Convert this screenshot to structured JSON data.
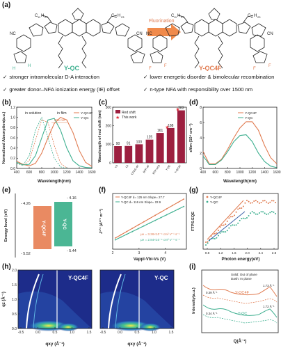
{
  "figure": {
    "panel_labels": [
      "(a)",
      "(b)",
      "(c)",
      "(d)",
      "(e)",
      "(f)",
      "(g)",
      "(h)",
      "(i)"
    ],
    "a": {
      "molecule_left": "Y-QC",
      "molecule_right": "Y-QC4F",
      "arrow_label": "Fluorination",
      "chain_label": "C11H23",
      "chain_sub": "11",
      "chain_sub2": "23",
      "atom_labels": [
        "NC",
        "CN",
        "H",
        "H",
        "F",
        "F",
        "O",
        "S",
        "N"
      ],
      "bullets": [
        "stronger intramolecular D-A interaction",
        "lower energetic disorder & bimolecular recombination",
        "greater donor–NFA ionization energy (IE) offset",
        "n-type NFA with responsibility over 1500 nm"
      ]
    },
    "colors": {
      "y_qc4f": "#e07a4f",
      "y_qc": "#3daf8f",
      "bar_red": "#9c1f3f",
      "star": "#e2323c",
      "dark": "#222222"
    }
  },
  "chart_data": [
    {
      "panel": "b",
      "type": "line",
      "xlabel": "Wavelength(nm)",
      "ylabel": "Normalized Absorption(a.u.)",
      "xlim": [
        400,
        1600
      ],
      "ylim": [
        0.0,
        1.2
      ],
      "xticks": [
        "400",
        "600",
        "800",
        "1000",
        "1200",
        "1400",
        "1600"
      ],
      "yticks": [
        "0.0",
        "0.2",
        "0.4",
        "0.6",
        "0.8",
        "1.0",
        "1.2"
      ],
      "annotations": [
        "in solution",
        "in film",
        "235 nm"
      ],
      "series": [
        {
          "name": "Y-QC4F",
          "x": [
            400,
            500,
            600,
            700,
            800,
            900,
            1000,
            1100,
            1200,
            1300,
            1400,
            1500,
            1600
          ],
          "y": [
            0.14,
            0.08,
            0.05,
            0.1,
            0.3,
            0.6,
            0.88,
            1.0,
            0.95,
            0.7,
            0.35,
            0.12,
            0.04
          ]
        },
        {
          "name": "Y-QC",
          "x": [
            400,
            500,
            600,
            700,
            800,
            900,
            1000,
            1100,
            1200,
            1300,
            1400,
            1500,
            1600
          ],
          "y": [
            0.12,
            0.07,
            0.08,
            0.25,
            0.6,
            0.95,
            0.98,
            0.75,
            0.4,
            0.15,
            0.05,
            0.02,
            0.01
          ]
        },
        {
          "name": "Y-QC4F solution",
          "x": [
            400,
            500,
            600,
            700,
            800,
            900,
            1000,
            1100,
            1200
          ],
          "y": [
            0.1,
            0.06,
            0.15,
            0.55,
            0.95,
            0.9,
            0.45,
            0.1,
            0.01
          ]
        },
        {
          "name": "Y-QC solution",
          "x": [
            400,
            500,
            600,
            700,
            800,
            900,
            1000,
            1100,
            1200
          ],
          "y": [
            0.1,
            0.06,
            0.25,
            0.75,
            1.0,
            0.6,
            0.2,
            0.03,
            0.0
          ]
        }
      ]
    },
    {
      "panel": "c",
      "type": "bar",
      "ylabel": "Wavelength of red shift (nm)",
      "ylim": [
        0,
        300
      ],
      "yticks": [
        "0",
        "100",
        "200",
        "300"
      ],
      "categories": [
        "Y6",
        "L8",
        "CCDC-4F",
        "BTP-4F",
        "BTP-eC9",
        "Y-QC",
        "Y-QC4F"
      ],
      "values": [
        90,
        91,
        100,
        125,
        161,
        188,
        283
      ],
      "star_values": [
        188,
        283
      ],
      "legend": [
        "Red shift",
        "This work"
      ]
    },
    {
      "panel": "d",
      "type": "line",
      "xlabel": "Wavelength(nm)",
      "ylabel": "εfilm (10⁴ cm⁻¹)",
      "xlim": [
        400,
        1600
      ],
      "ylim": [
        0,
        8
      ],
      "xticks": [
        "400",
        "600",
        "800",
        "1000",
        "1200",
        "1400",
        "1600"
      ],
      "yticks": [
        "0",
        "2",
        "4",
        "6",
        "8"
      ],
      "series": [
        {
          "name": "Y-QC4F",
          "x": [
            400,
            450,
            500,
            600,
            700,
            800,
            900,
            1000,
            1100,
            1200,
            1300,
            1400,
            1500,
            1600
          ],
          "y": [
            2.2,
            1.4,
            0.6,
            0.6,
            1.2,
            2.5,
            4.0,
            5.3,
            6.1,
            6.1,
            5.0,
            3.0,
            1.4,
            0.6
          ]
        },
        {
          "name": "Y-QC",
          "x": [
            400,
            450,
            500,
            600,
            700,
            800,
            900,
            1000,
            1100,
            1200,
            1300,
            1400,
            1500,
            1600
          ],
          "y": [
            1.6,
            1.1,
            0.5,
            0.5,
            1.1,
            2.2,
            3.5,
            4.3,
            4.4,
            3.5,
            2.0,
            0.9,
            0.3,
            0.1
          ]
        }
      ]
    },
    {
      "panel": "e",
      "type": "bar",
      "ylabel": "Energy level (eV)",
      "categories": [
        "Y-QC4F",
        "Y-QC"
      ],
      "lumo": [
        -4.26,
        -4.16
      ],
      "homo": [
        -5.52,
        -5.44
      ],
      "labels": [
        "- 4.26",
        "- 4.16",
        "- 5.52",
        "- 5.44"
      ]
    },
    {
      "panel": "f",
      "type": "line",
      "xlabel": "Vappl-Vbi-Vs (V)",
      "ylabel": "J¹ᐟ² (A¹ᐟ² m⁻¹)",
      "xlim": [
        2.0,
        4.8
      ],
      "ylim": [
        0,
        300
      ],
      "xticks": [
        "2",
        "3",
        "4"
      ],
      "legend": [
        "Y-QC4F d= 125 nm Slope= 27.7",
        "Y-QC   d= 116 nm Slope= 22.9"
      ],
      "annotations": [
        "μe = 3.26×10⁻⁴ cm² V⁻¹ s⁻¹",
        "μe = 2.84×10⁻⁴ cm² V⁻¹ s⁻¹"
      ],
      "series": [
        {
          "name": "Y-QC4F",
          "x": [
            2.1,
            4.7
          ],
          "y": [
            60,
            270
          ]
        },
        {
          "name": "Y-QC",
          "x": [
            2.1,
            4.7
          ],
          "y": [
            50,
            230
          ]
        }
      ]
    },
    {
      "panel": "g",
      "type": "scatter",
      "xlabel": "Photon energy(eV)",
      "ylabel": "FTPS-EQE",
      "xticks": [
        "0.8",
        "1.2",
        "1.6",
        "2.0",
        "2.4",
        "2.8"
      ],
      "legend": [
        "Y-QC4F",
        "Y-QC"
      ]
    },
    {
      "panel": "h",
      "type": "heatmap",
      "titles": [
        "Y-QC4F",
        "Y-QC"
      ],
      "xlabel": "qxy (Å⁻¹)",
      "ylabel": "qz (Å⁻¹)",
      "xticks": [
        "-0.5",
        "0.0",
        "0.5",
        "1.0",
        "1.5"
      ],
      "yticks": [
        "0.0",
        "0.5",
        "1.0",
        "1.5",
        "2.0"
      ]
    },
    {
      "panel": "i",
      "type": "line",
      "xlabel": "Q(Å⁻¹)",
      "ylabel": "Intensity(a.u.)",
      "annotations": [
        "Solid: Out of plane",
        "Dash: In plane",
        "0.39 Å⁻¹",
        "0.34 Å⁻¹",
        "1.73 Å⁻¹",
        "1.72 Å⁻¹",
        "Y-QC4F",
        "Y-QC"
      ]
    }
  ]
}
